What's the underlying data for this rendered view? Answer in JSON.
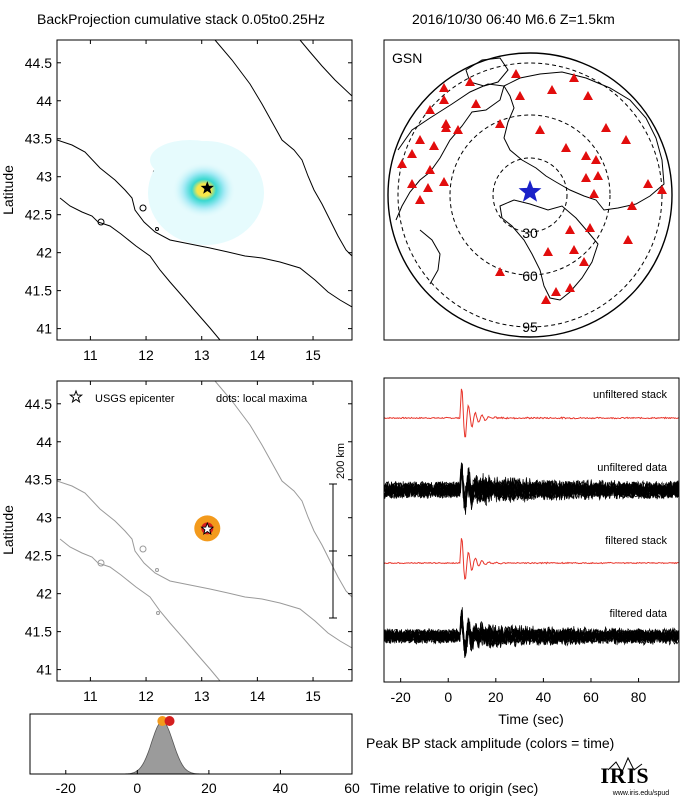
{
  "header": {
    "title": "BackProjection cumulative stack 0.05to0.25Hz",
    "event": "2016/10/30 06:40   M6.6  Z=1.5km"
  },
  "chart_data": [
    {
      "type": "heatmap",
      "xlabel": "",
      "ylabel": "Latitude",
      "xlim": [
        10.4,
        15.7
      ],
      "ylim": [
        40.85,
        44.8
      ],
      "x_ticks": [
        "11",
        "12",
        "13",
        "14",
        "15"
      ],
      "y_ticks": [
        "41",
        "41.5",
        "42",
        "42.5",
        "43",
        "43.5",
        "44",
        "44.5"
      ],
      "epicenter": {
        "lon": 13.1,
        "lat": 42.85
      }
    },
    {
      "type": "scatter",
      "label": "GSN",
      "ring_labels": [
        "30",
        "60",
        "95"
      ],
      "event_star": {
        "lon": 13.1,
        "lat": 42.85
      }
    },
    {
      "type": "scatter",
      "xlabel": "",
      "ylabel": "Latitude",
      "xlim": [
        10.4,
        15.7
      ],
      "ylim": [
        40.85,
        44.8
      ],
      "x_ticks": [
        "11",
        "12",
        "13",
        "14",
        "15"
      ],
      "y_ticks": [
        "41",
        "41.5",
        "42",
        "42.5",
        "43",
        "43.5",
        "44",
        "44.5"
      ],
      "legend_star": "USGS epicenter",
      "legend_dots": "dots: local maxima",
      "scale_bar_label": "200 km",
      "peaks": [
        {
          "lon": 13.1,
          "lat": 42.86,
          "color": "#f39a1c",
          "r": 13
        },
        {
          "lon": 13.1,
          "lat": 42.86,
          "color": "#d41e1e",
          "r": 6
        }
      ]
    },
    {
      "type": "line",
      "xlabel": "Time (sec)",
      "xlim": [
        -27,
        97
      ],
      "x_ticks": [
        -20,
        0,
        20,
        40,
        60,
        80
      ],
      "traces": [
        {
          "label": "unfiltered stack",
          "color": "#e8352b"
        },
        {
          "label": "unfiltered data",
          "color": "#000000"
        },
        {
          "label": "filtered stack",
          "color": "#e8352b"
        },
        {
          "label": "filtered data",
          "color": "#000000"
        }
      ]
    },
    {
      "type": "area",
      "title": "Peak BP stack amplitude (colors = time)",
      "xlabel": "Time relative to origin (sec)",
      "xlim": [
        -30,
        60
      ],
      "x_ticks": [
        -20,
        0,
        20,
        40,
        60
      ],
      "peak_time": 7,
      "markers": [
        {
          "t": 7,
          "color": "#f39a1c"
        },
        {
          "t": 9,
          "color": "#d41e1e"
        }
      ]
    }
  ],
  "logo": {
    "name": "IRIS",
    "url": "www.iris.edu/spud"
  }
}
